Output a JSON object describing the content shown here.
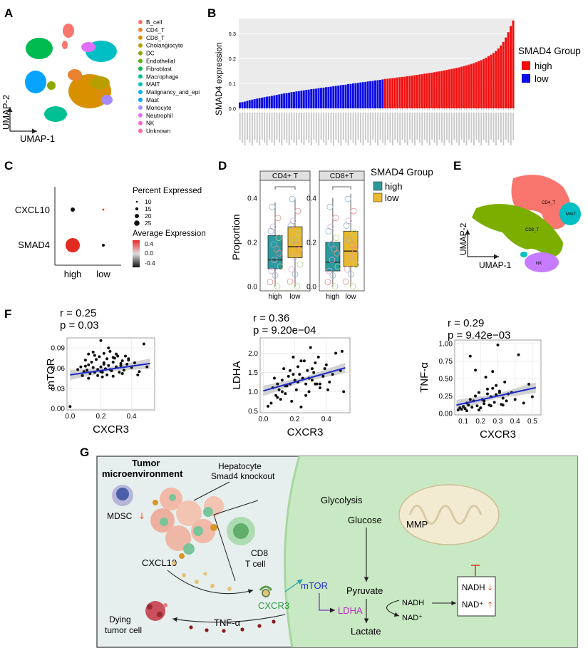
{
  "panels": {
    "A": {
      "label": "A",
      "xlabel": "UMAP-1",
      "ylabel": "UMAP-2",
      "legend": [
        {
          "name": "B_cell",
          "color": "#f8766d"
        },
        {
          "name": "CD4_T",
          "color": "#ea8331"
        },
        {
          "name": "CD8_T",
          "color": "#d89000"
        },
        {
          "name": "Cholangiocyte",
          "color": "#b79f00"
        },
        {
          "name": "DC",
          "color": "#8fa800"
        },
        {
          "name": "Endothelial",
          "color": "#53b400"
        },
        {
          "name": "Fibroblast",
          "color": "#00bb4e"
        },
        {
          "name": "Macrophage",
          "color": "#00c094"
        },
        {
          "name": "MAIT",
          "color": "#00bfc4"
        },
        {
          "name": "Malignancy_and_epi",
          "color": "#00b6eb"
        },
        {
          "name": "Mast",
          "color": "#06a4ff"
        },
        {
          "name": "Monocyte",
          "color": "#a58aff"
        },
        {
          "name": "Neutrophil",
          "color": "#df70f8"
        },
        {
          "name": "NK",
          "color": "#fb61d7"
        },
        {
          "name": "Unknown",
          "color": "#ff66a8"
        }
      ]
    },
    "B": {
      "label": "B"
    },
    "C": {
      "label": "C",
      "genes": [
        "CXCL10",
        "SMAD4"
      ],
      "groups": [
        "high",
        "low"
      ],
      "pct_title": "Percent Expressed",
      "pct_levels": [
        "10",
        "15",
        "20",
        "25"
      ],
      "avg_title": "Average Expression",
      "avg_ticks": [
        "0.4",
        "0.0",
        "-0.4"
      ]
    },
    "D": {
      "label": "D",
      "ylabel": "Proportion",
      "legend_title": "SMAD4 Group",
      "legend": [
        {
          "name": "high",
          "color": "#2a9a9e"
        },
        {
          "name": "low",
          "color": "#e8b92f"
        }
      ]
    },
    "E": {
      "label": "E",
      "xlabel": "UMAP-1",
      "ylabel": "UMAP-2",
      "cluster_labels": [
        "CD4_T",
        "MAIT",
        "CD8_T",
        "NK"
      ]
    },
    "F": {
      "label": "F"
    },
    "G": {
      "label": "G",
      "texts": {
        "tme": "Tumor",
        "tme2": "microenvironment",
        "hep": "Hepatocyte",
        "hep2": "Smad4 knockout",
        "mdsc": "MDSC",
        "cxcl10": "CXCL10",
        "cd8": "CD8",
        "cd8b": "T cell",
        "dying": "Dying",
        "dying2": "tumor cell",
        "tnf": "TNF-α",
        "glycolysis": "Glycolysis",
        "glucose": "Glucose",
        "mmp": "MMP",
        "mtor": "mTOR",
        "pyruvate": "Pyruvate",
        "ldha": "LDHA",
        "nadh": "NADH",
        "nadp": "NAD⁺",
        "lactate": "Lactate",
        "cxcr3": "CXCR3",
        "box_nadh": "NADH",
        "box_nad": "NAD⁺"
      }
    }
  },
  "chart_data": [
    {
      "type": "bar",
      "title": "",
      "xlabel": "",
      "ylabel": "SMAD4 expression",
      "ylim": [
        0,
        0.36
      ],
      "yticks": [
        "0.0",
        "0.1",
        "0.2",
        "0.3"
      ],
      "legend_title": "SMAD4 Group",
      "legend": [
        {
          "name": "high",
          "color": "#f20d0d"
        },
        {
          "name": "low",
          "color": "#0d0de6"
        }
      ],
      "series": [
        {
          "name": "low",
          "values": [
            0.024,
            0.025,
            0.027,
            0.03,
            0.033,
            0.035,
            0.037,
            0.039,
            0.041,
            0.043,
            0.045,
            0.047,
            0.048,
            0.05,
            0.052,
            0.054,
            0.056,
            0.058,
            0.06,
            0.061,
            0.063,
            0.065,
            0.066,
            0.068,
            0.069,
            0.071,
            0.072,
            0.074,
            0.075,
            0.077,
            0.078,
            0.079,
            0.081,
            0.082,
            0.083,
            0.085,
            0.086,
            0.087,
            0.089,
            0.09,
            0.091,
            0.093,
            0.094,
            0.095,
            0.097,
            0.098,
            0.1,
            0.101,
            0.102,
            0.104,
            0.105,
            0.106,
            0.108,
            0.109,
            0.11,
            0.112,
            0.113,
            0.114,
            0.116
          ]
        },
        {
          "name": "high",
          "values": [
            0.118,
            0.119,
            0.12,
            0.121,
            0.122,
            0.124,
            0.125,
            0.126,
            0.127,
            0.129,
            0.13,
            0.131,
            0.133,
            0.134,
            0.136,
            0.137,
            0.139,
            0.14,
            0.142,
            0.143,
            0.145,
            0.147,
            0.148,
            0.15,
            0.152,
            0.154,
            0.156,
            0.158,
            0.16,
            0.162,
            0.164,
            0.167,
            0.169,
            0.172,
            0.175,
            0.178,
            0.181,
            0.185,
            0.189,
            0.193,
            0.198,
            0.203,
            0.209,
            0.215,
            0.222,
            0.23,
            0.24,
            0.252,
            0.266,
            0.284,
            0.305,
            0.33,
            0.352
          ]
        }
      ]
    },
    {
      "type": "scatter",
      "title": "r = 0.25",
      "subtitle": "p = 0.03",
      "xlabel": "CXCR3",
      "ylabel": "mTOR",
      "xlim": [
        -0.02,
        0.55
      ],
      "ylim": [
        -0.002,
        0.105
      ],
      "xticks": [
        0.0,
        0.2,
        0.4
      ],
      "xtick_labels": [
        "0.0",
        "0.2",
        "0.4"
      ],
      "yticks": [
        0.0,
        0.03,
        0.06,
        0.09
      ],
      "ytick_labels": [
        "0.00",
        "0.03",
        "0.06",
        "0.09"
      ],
      "fit": [
        [
          0.0,
          0.05
        ],
        [
          0.52,
          0.067
        ]
      ],
      "x": [
        0.0,
        0.05,
        0.07,
        0.08,
        0.09,
        0.1,
        0.11,
        0.12,
        0.12,
        0.13,
        0.14,
        0.15,
        0.15,
        0.16,
        0.17,
        0.18,
        0.18,
        0.19,
        0.2,
        0.2,
        0.21,
        0.22,
        0.22,
        0.23,
        0.24,
        0.24,
        0.25,
        0.26,
        0.27,
        0.28,
        0.28,
        0.29,
        0.3,
        0.31,
        0.32,
        0.33,
        0.34,
        0.35,
        0.36,
        0.37,
        0.38,
        0.4,
        0.42,
        0.45,
        0.48,
        0.5,
        0.12,
        0.16,
        0.21,
        0.26,
        0.3,
        0.34,
        0.38,
        0.1,
        0.2,
        0.25,
        0.33,
        0.44,
        0.22,
        0.28
      ],
      "y": [
        0.003,
        0.058,
        0.062,
        0.049,
        0.055,
        0.072,
        0.057,
        0.081,
        0.065,
        0.052,
        0.069,
        0.061,
        0.084,
        0.054,
        0.073,
        0.058,
        0.049,
        0.077,
        0.062,
        0.101,
        0.054,
        0.068,
        0.082,
        0.059,
        0.05,
        0.074,
        0.064,
        0.085,
        0.056,
        0.069,
        0.048,
        0.075,
        0.062,
        0.078,
        0.054,
        0.064,
        0.071,
        0.057,
        0.078,
        0.066,
        0.072,
        0.061,
        0.068,
        0.055,
        0.096,
        0.062,
        0.045,
        0.079,
        0.047,
        0.058,
        0.081,
        0.052,
        0.074,
        0.063,
        0.055,
        0.09,
        0.067,
        0.05,
        0.066,
        0.076
      ]
    },
    {
      "type": "scatter",
      "title": "r = 0.36",
      "subtitle": "p = 9.20e−04",
      "xlabel": "CXCR3",
      "ylabel": "LDHA",
      "xlim": [
        -0.02,
        0.55
      ],
      "ylim": [
        0.45,
        2.4
      ],
      "xticks": [
        0.0,
        0.2,
        0.4
      ],
      "xtick_labels": [
        "0.0",
        "0.2",
        "0.4"
      ],
      "yticks": [
        0.5,
        1.0,
        1.5,
        2.0
      ],
      "ytick_labels": [
        "0.5",
        "1.0",
        "1.5",
        "2.0"
      ],
      "fit": [
        [
          0.0,
          1.02
        ],
        [
          0.52,
          1.62
        ]
      ],
      "x": [
        0.03,
        0.05,
        0.06,
        0.08,
        0.09,
        0.1,
        0.11,
        0.12,
        0.13,
        0.14,
        0.15,
        0.16,
        0.17,
        0.18,
        0.19,
        0.2,
        0.21,
        0.22,
        0.23,
        0.24,
        0.25,
        0.26,
        0.27,
        0.28,
        0.29,
        0.3,
        0.31,
        0.32,
        0.33,
        0.34,
        0.35,
        0.36,
        0.38,
        0.4,
        0.42,
        0.44,
        0.46,
        0.49,
        0.51,
        0.07,
        0.12,
        0.17,
        0.22,
        0.27,
        0.31,
        0.36,
        0.41,
        0.09,
        0.19,
        0.29,
        0.39,
        0.24,
        0.14,
        0.33,
        0.5
      ],
      "y": [
        0.62,
        0.7,
        1.1,
        0.9,
        1.2,
        1.05,
        0.8,
        1.3,
        1.6,
        0.95,
        1.15,
        1.4,
        1.2,
        0.75,
        1.9,
        1.3,
        1.05,
        1.65,
        1.45,
        0.6,
        1.35,
        1.8,
        1.2,
        1.55,
        1.0,
        2.15,
        1.3,
        1.5,
        1.75,
        1.2,
        1.9,
        1.1,
        1.4,
        1.7,
        1.25,
        1.45,
        2.0,
        1.55,
        1.0,
        1.35,
        1.0,
        1.55,
        1.25,
        0.9,
        1.6,
        1.2,
        1.05,
        0.85,
        1.45,
        1.35,
        1.6,
        1.8,
        1.15,
        1.2,
        2.05
      ]
    },
    {
      "type": "scatter",
      "title": "r = 0.29",
      "subtitle": "p = 9.42e−03",
      "xlabel": "CXCR3",
      "ylabel": "TNF-α",
      "xlim": [
        0.05,
        0.55
      ],
      "ylim": [
        -0.02,
        1.05
      ],
      "xticks": [
        0.1,
        0.2,
        0.3,
        0.4,
        0.5
      ],
      "xtick_labels": [
        "0.1",
        "0.2",
        "0.3",
        "0.4",
        "0.5"
      ],
      "yticks": [
        0.0,
        0.25,
        0.5,
        0.75,
        1.0
      ],
      "ytick_labels": [
        "0.00",
        "0.25",
        "0.50",
        "0.75",
        "1.00"
      ],
      "fit": [
        [
          0.06,
          0.12
        ],
        [
          0.52,
          0.37
        ]
      ],
      "x": [
        0.07,
        0.08,
        0.09,
        0.1,
        0.11,
        0.12,
        0.13,
        0.14,
        0.15,
        0.16,
        0.17,
        0.18,
        0.19,
        0.2,
        0.21,
        0.22,
        0.23,
        0.24,
        0.25,
        0.26,
        0.27,
        0.28,
        0.29,
        0.3,
        0.31,
        0.32,
        0.33,
        0.34,
        0.35,
        0.36,
        0.38,
        0.4,
        0.42,
        0.45,
        0.48,
        0.5,
        0.14,
        0.19,
        0.24,
        0.29,
        0.33,
        0.12,
        0.22,
        0.27,
        0.31,
        0.17,
        0.26
      ],
      "y": [
        0.05,
        0.08,
        0.06,
        0.1,
        0.07,
        0.15,
        0.12,
        0.82,
        0.09,
        0.18,
        0.25,
        0.11,
        0.3,
        0.08,
        0.2,
        0.14,
        0.52,
        0.35,
        0.12,
        0.24,
        0.6,
        0.16,
        0.27,
        0.98,
        0.32,
        0.13,
        0.22,
        0.45,
        0.18,
        0.28,
        0.3,
        0.2,
        0.84,
        0.15,
        0.42,
        0.24,
        0.2,
        0.05,
        0.28,
        0.4,
        0.12,
        0.04,
        0.18,
        0.36,
        0.3,
        0.62,
        0.11
      ]
    },
    {
      "type": "box",
      "ylabel": "Proportion",
      "facets": [
        "CD4+ T",
        "CD8+T"
      ],
      "ylim": [
        -0.02,
        0.48
      ],
      "yticks": [
        "0.0",
        "0.2",
        "0.4"
      ],
      "series": [
        {
          "name": "high",
          "CD4+ T": {
            "min": 0.0,
            "q1": 0.08,
            "median": 0.12,
            "q3": 0.23,
            "max": 0.38
          },
          "CD8+T": {
            "min": 0.0,
            "q1": 0.07,
            "median": 0.11,
            "q3": 0.2,
            "max": 0.4
          }
        },
        {
          "name": "low",
          "CD4+ T": {
            "min": 0.0,
            "q1": 0.13,
            "median": 0.18,
            "q3": 0.27,
            "max": 0.4
          },
          "CD8+T": {
            "min": 0.0,
            "q1": 0.09,
            "median": 0.16,
            "q3": 0.25,
            "max": 0.42
          }
        }
      ]
    }
  ]
}
